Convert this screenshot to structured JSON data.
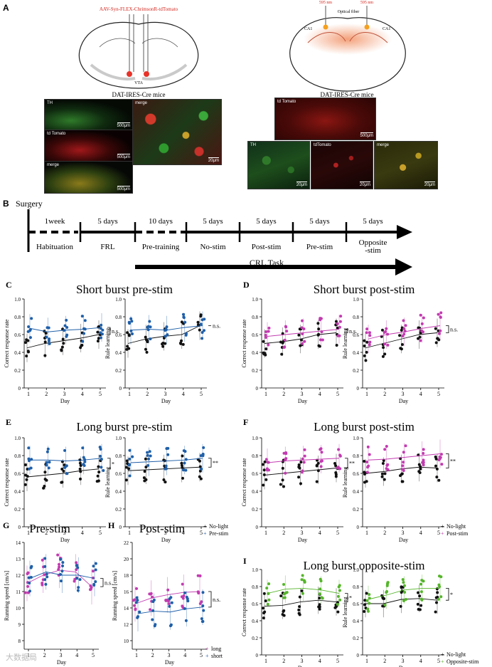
{
  "panelA": {
    "letter": "A",
    "virus_label": "AAV-Syn-FLEX-ChrimsonR-tdTomato",
    "vta_label": "VTA",
    "mouse_left": "DAT-IRES-Cre mice",
    "mouse_right": "DAT-IRES-Cre mice",
    "light_left": "595 nm",
    "light_right": "595 nm",
    "fiber_label": "Optical fiber",
    "ca1_left": "CA1",
    "ca1_right": "CA1",
    "micrographs": [
      {
        "label": "TH",
        "scale": "500μm"
      },
      {
        "label": "td Tomato",
        "scale": "500μm"
      },
      {
        "label": "merge",
        "scale": "500μm"
      },
      {
        "label": "merge",
        "scale": "20μm"
      },
      {
        "label": "td Tomato",
        "scale": "500μm"
      },
      {
        "label": "TH",
        "scale": "20μm"
      },
      {
        "label": "tdTomato",
        "scale": "20μm"
      },
      {
        "label": "merge",
        "scale": "20μm"
      }
    ]
  },
  "panelB": {
    "letter": "B",
    "surgery": "Surgery",
    "durations": [
      "1week",
      "5 days",
      "10 days",
      "5 days",
      "5 days",
      "5 days",
      "5 days"
    ],
    "phases": [
      "Habituation",
      "FRL",
      "Pre-training",
      "No-stim",
      "Post-stim",
      "Pre-stim",
      "Opposite\n-stim"
    ],
    "crl": "CRL Task"
  },
  "colors": {
    "black": "#111111",
    "blue": "#1f5fa8",
    "magenta": "#c23bb0",
    "green": "#55b52a"
  },
  "charts": [
    {
      "letter": "C",
      "title": "Short burst pre-stim",
      "sig": [
        "n.s.",
        "n.s."
      ],
      "color": "#1f5fa8",
      "left": {
        "ylabel": "Correct response rate",
        "ctrl": [
          0.45,
          0.5,
          0.53,
          0.56,
          0.6
        ],
        "stim": [
          0.67,
          0.63,
          0.65,
          0.66,
          0.68
        ]
      },
      "right": {
        "ylabel": "Rule learning",
        "ctrl": [
          0.5,
          0.55,
          0.58,
          0.6,
          0.7
        ],
        "stim": [
          0.65,
          0.66,
          0.65,
          0.68,
          0.7
        ]
      }
    },
    {
      "letter": "D",
      "title": "Short burst post-stim",
      "sig": [
        "n.s.",
        "n.s."
      ],
      "color": "#c23bb0",
      "left": {
        "ylabel": "Correct response rate",
        "ctrl": [
          0.5,
          0.52,
          0.55,
          0.6,
          0.62
        ],
        "stim": [
          0.58,
          0.6,
          0.62,
          0.64,
          0.66
        ]
      },
      "right": {
        "ylabel": "Rule learning",
        "ctrl": [
          0.45,
          0.5,
          0.55,
          0.6,
          0.62
        ],
        "stim": [
          0.55,
          0.6,
          0.63,
          0.67,
          0.7
        ]
      }
    },
    {
      "letter": "E",
      "title": "Long burst pre-stim",
      "sig": [
        "*",
        "**"
      ],
      "color": "#1f5fa8",
      "left": {
        "ylabel": "Correct response rate",
        "ctrl": [
          0.56,
          0.58,
          0.6,
          0.63,
          0.65
        ],
        "stim": [
          0.75,
          0.75,
          0.74,
          0.75,
          0.77
        ]
      },
      "right": {
        "ylabel": "Rule learning",
        "ctrl": [
          0.63,
          0.64,
          0.65,
          0.66,
          0.67
        ],
        "stim": [
          0.72,
          0.73,
          0.74,
          0.75,
          0.77
        ]
      },
      "legend": [
        "No-light",
        "Pre-stim"
      ]
    },
    {
      "letter": "F",
      "title": "Long burst post-stim",
      "sig": [
        "**",
        "**"
      ],
      "color": "#c23bb0",
      "left": {
        "ylabel": "Correct response rate",
        "ctrl": [
          0.58,
          0.6,
          0.62,
          0.64,
          0.66
        ],
        "stim": [
          0.72,
          0.74,
          0.75,
          0.76,
          0.77
        ]
      },
      "right": {
        "ylabel": "Rule learning",
        "ctrl": [
          0.6,
          0.62,
          0.65,
          0.67,
          0.66
        ],
        "stim": [
          0.75,
          0.76,
          0.78,
          0.8,
          0.82
        ]
      },
      "legend": [
        "No-light",
        "Post-stim"
      ]
    },
    {
      "letter": "I",
      "title": "Long burst opposite-stim",
      "sig": [
        "*",
        "*"
      ],
      "color": "#55b52a",
      "left": {
        "ylabel": "Correct response rate",
        "ctrl": [
          0.57,
          0.58,
          0.62,
          0.64,
          0.62
        ],
        "stim": [
          0.72,
          0.77,
          0.78,
          0.76,
          0.72
        ]
      },
      "right": {
        "ylabel": "Rule learning",
        "ctrl": [
          0.6,
          0.6,
          0.65,
          0.66,
          0.64
        ],
        "stim": [
          0.65,
          0.7,
          0.76,
          0.78,
          0.78
        ]
      },
      "legend": [
        "No-light",
        "Opposite-stim"
      ]
    }
  ],
  "speedCharts": [
    {
      "letter": "G",
      "title": "Pre-stim",
      "ylabel": "Running speed [cm/s]",
      "ticks": [
        "8",
        "9",
        "10",
        "11",
        "12",
        "13",
        "14"
      ],
      "min": 8,
      "max": 14,
      "a": [
        11.5,
        12,
        12.3,
        12.2,
        11.3
      ],
      "b": [
        11.8,
        12.2,
        12,
        12,
        11.8
      ],
      "sig": "n.s."
    },
    {
      "letter": "H",
      "title": "Post-stim",
      "ylabel": "Running speed [cm/s]",
      "ticks": [
        "10",
        "12",
        "14",
        "16",
        "18",
        "20",
        "22"
      ],
      "min": 8,
      "max": 22,
      "a": [
        14.5,
        15.2,
        15.6,
        15.9,
        16.0
      ],
      "b": [
        13.3,
        13.6,
        13.5,
        13.9,
        14.1
      ],
      "sig": "n.s.",
      "legend": [
        "long",
        "short"
      ]
    }
  ],
  "axis": {
    "xlabel": "Day",
    "days": [
      "1",
      "2",
      "3",
      "4",
      "5"
    ],
    "yticks": [
      "0",
      "0.2",
      "0.4",
      "0.6",
      "0.8",
      "1.0"
    ]
  },
  "watermark": "大数据局"
}
